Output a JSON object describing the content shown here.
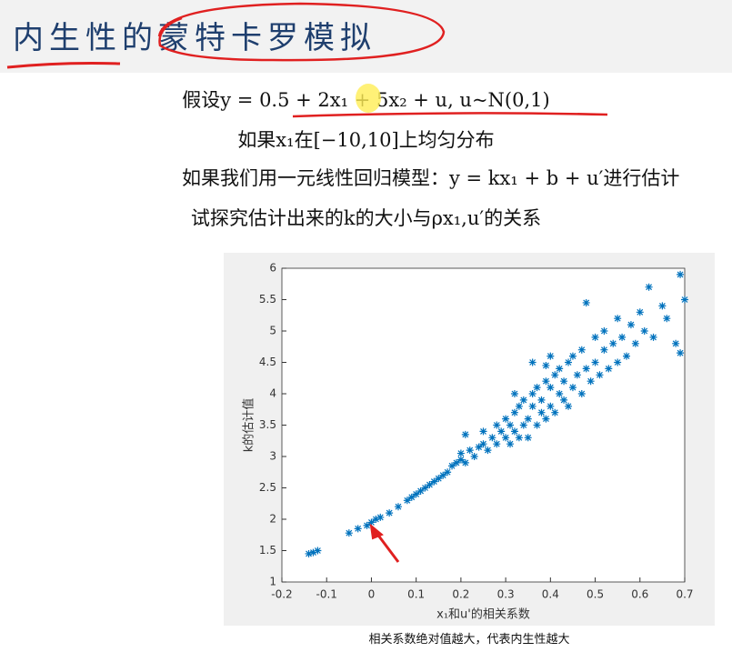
{
  "slide": {
    "title": "内生性的蒙特卡罗模拟",
    "lines": [
      "假设y = 0.5 + 2x₁ + 5x₂ + u, u~N(0,1)",
      "如果x₁在[−10,10]上均匀分布",
      "如果我们用一元线性回归模型：y = kx₁ + b + u′进行估计",
      "试探究估计出来的k的大小与ρx₁,u′的关系"
    ],
    "caption": "相关系数绝对值越大，代表内生性越大"
  },
  "chart_data": {
    "type": "scatter",
    "xlabel": "x₁和u'的相关系数",
    "ylabel": "k的估计值",
    "color": "#0072bd",
    "xlim": [
      -0.2,
      0.7
    ],
    "xticks": [
      -0.2,
      -0.1,
      0,
      0.1,
      0.2,
      0.3,
      0.4,
      0.5,
      0.6,
      0.7
    ],
    "ylim": [
      1,
      6
    ],
    "yticks": [
      1,
      1.5,
      2,
      2.5,
      3,
      3.5,
      4,
      4.5,
      5,
      5.5,
      6
    ],
    "x": [
      -0.14,
      -0.13,
      -0.12,
      -0.05,
      -0.03,
      -0.01,
      0,
      0.01,
      0.02,
      0.04,
      0.06,
      0.08,
      0.09,
      0.1,
      0.11,
      0.12,
      0.13,
      0.14,
      0.15,
      0.16,
      0.17,
      0.18,
      0.19,
      0.2,
      0.2,
      0.21,
      0.22,
      0.23,
      0.24,
      0.25,
      0.25,
      0.26,
      0.27,
      0.28,
      0.28,
      0.29,
      0.3,
      0.3,
      0.31,
      0.31,
      0.32,
      0.32,
      0.33,
      0.33,
      0.34,
      0.34,
      0.35,
      0.35,
      0.36,
      0.36,
      0.37,
      0.37,
      0.38,
      0.38,
      0.39,
      0.39,
      0.4,
      0.4,
      0.41,
      0.41,
      0.42,
      0.42,
      0.43,
      0.43,
      0.44,
      0.44,
      0.45,
      0.45,
      0.46,
      0.47,
      0.47,
      0.48,
      0.48,
      0.49,
      0.5,
      0.5,
      0.51,
      0.52,
      0.52,
      0.53,
      0.54,
      0.55,
      0.55,
      0.56,
      0.57,
      0.58,
      0.59,
      0.6,
      0.61,
      0.62,
      0.63,
      0.65,
      0.66,
      0.68,
      0.69,
      0.7,
      0.69,
      0.32,
      0.39,
      0.21,
      0.36,
      0.4
    ],
    "values": [
      1.45,
      1.47,
      1.5,
      1.78,
      1.85,
      1.9,
      1.95,
      2.0,
      2.03,
      2.1,
      2.2,
      2.3,
      2.35,
      2.4,
      2.45,
      2.5,
      2.55,
      2.6,
      2.65,
      2.7,
      2.75,
      2.85,
      2.9,
      2.95,
      3.05,
      2.9,
      3.1,
      3.0,
      3.15,
      3.2,
      3.4,
      3.1,
      3.3,
      3.5,
      3.2,
      3.4,
      3.3,
      3.6,
      3.5,
      3.2,
      3.7,
      3.4,
      3.3,
      3.8,
      3.5,
      3.9,
      3.6,
      3.3,
      3.8,
      4.0,
      3.5,
      4.1,
      3.7,
      3.9,
      4.2,
      3.6,
      3.8,
      4.1,
      4.3,
      3.7,
      4.0,
      4.4,
      3.9,
      4.2,
      4.5,
      3.8,
      4.1,
      4.6,
      4.3,
      4.0,
      4.7,
      4.4,
      5.45,
      4.2,
      4.5,
      4.9,
      4.3,
      4.7,
      5.0,
      4.4,
      4.8,
      4.5,
      5.2,
      4.9,
      4.6,
      5.1,
      4.8,
      5.3,
      5.0,
      5.7,
      4.9,
      5.4,
      5.2,
      4.8,
      4.65,
      5.5,
      5.9,
      4.0,
      4.45,
      3.35,
      4.5,
      4.6
    ]
  }
}
